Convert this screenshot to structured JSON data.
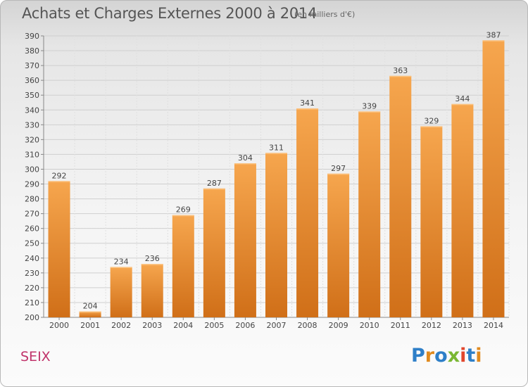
{
  "chart_data": {
    "type": "bar",
    "title": "Achats et Charges Externes 2000 à 2014",
    "subtitle": "(en milliers d'€)",
    "categories": [
      "2000",
      "2001",
      "2002",
      "2003",
      "2004",
      "2005",
      "2006",
      "2007",
      "2008",
      "2009",
      "2010",
      "2011",
      "2012",
      "2013",
      "2014"
    ],
    "values": [
      292,
      204,
      234,
      236,
      269,
      287,
      304,
      311,
      341,
      297,
      339,
      363,
      329,
      344,
      387
    ],
    "ylim": [
      200,
      390
    ],
    "yticks": [
      200,
      210,
      220,
      230,
      240,
      250,
      260,
      270,
      280,
      290,
      300,
      310,
      320,
      330,
      340,
      350,
      360,
      370,
      380,
      390
    ],
    "grid": true,
    "colors": {
      "bar_light": "#f6a64e",
      "bar_dark": "#d06f18"
    }
  },
  "commune": "SEIX",
  "logo": {
    "text": "Proxiti"
  }
}
